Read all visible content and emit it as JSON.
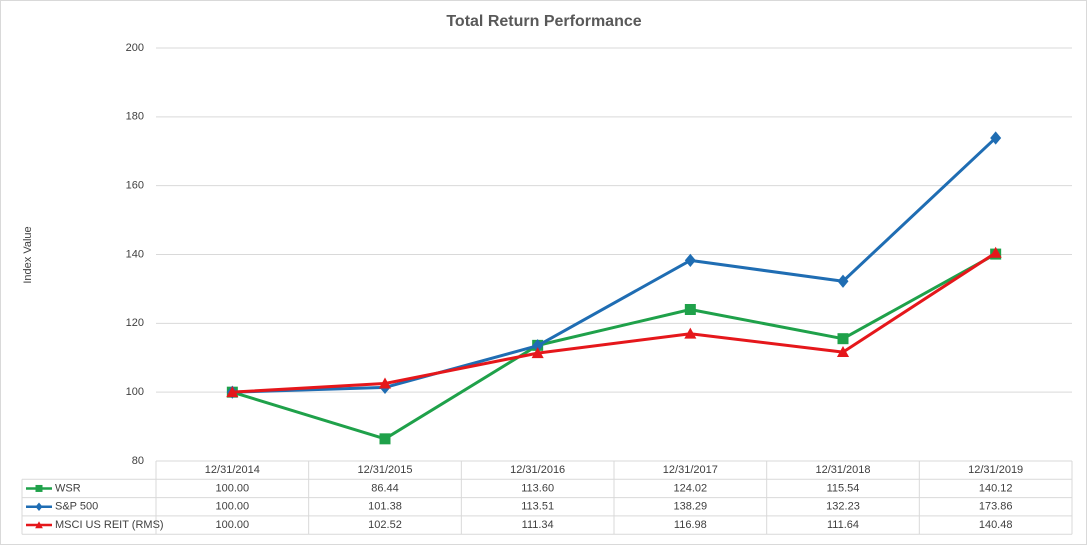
{
  "chart_data": {
    "type": "line",
    "title": "Total Return Performance",
    "y_label": "Index Value",
    "categories": [
      "12/31/2014",
      "12/31/2015",
      "12/31/2016",
      "12/31/2017",
      "12/31/2018",
      "12/31/2019"
    ],
    "ylim": [
      80,
      200
    ],
    "yticks": [
      80,
      100,
      120,
      140,
      160,
      180,
      200
    ],
    "grid": true,
    "series": [
      {
        "name": "WSR",
        "color": "#1fa14a",
        "marker": "square",
        "values": [
          100,
          86.44,
          113.6,
          124.02,
          115.54,
          140.12
        ],
        "value_labels": [
          "100.00",
          "86.44",
          "113.60",
          "124.02",
          "115.54",
          "140.12"
        ]
      },
      {
        "name": "S&P 500",
        "color": "#1f6db3",
        "marker": "diamond",
        "values": [
          100,
          101.38,
          113.51,
          138.29,
          132.23,
          173.86
        ],
        "value_labels": [
          "100.00",
          "101.38",
          "113.51",
          "138.29",
          "132.23",
          "173.86"
        ]
      },
      {
        "name": "MSCI US REIT (RMS)",
        "color": "#e5171b",
        "marker": "triangle",
        "values": [
          100,
          102.52,
          111.34,
          116.98,
          111.64,
          140.48
        ],
        "value_labels": [
          "100.00",
          "102.52",
          "111.34",
          "116.98",
          "111.64",
          "140.48"
        ]
      }
    ]
  }
}
